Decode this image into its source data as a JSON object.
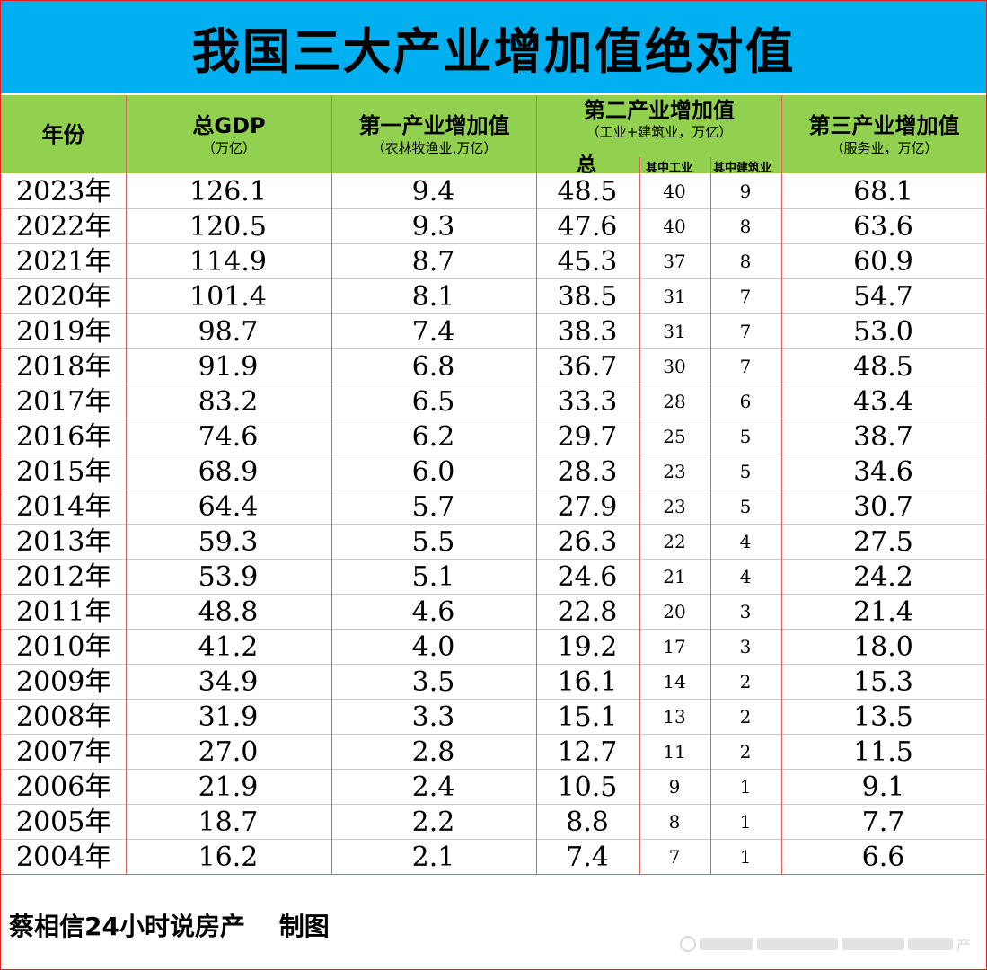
{
  "title": "我国三大产业增加值绝对值",
  "header": {
    "year": "年份",
    "gdp": {
      "main": "总GDP",
      "sub": "（万亿）"
    },
    "primary": {
      "main": "第一产业增加值",
      "sub": "（农林牧渔业,万亿）"
    },
    "secondary": {
      "main": "第二产业增加值",
      "sub": "（工业+建筑业，万亿）",
      "total": "总",
      "industry": "其中工业",
      "construction": "其中建筑业"
    },
    "tertiary": {
      "main": "第三产业增加值",
      "sub": "（服务业，万亿）"
    }
  },
  "chart_data": {
    "type": "table",
    "title": "我国三大产业增加值绝对值",
    "columns": [
      "年份",
      "总GDP（万亿）",
      "第一产业增加值（农林牧渔业,万亿）",
      "第二产业增加值 总",
      "其中工业",
      "其中建筑业",
      "第三产业增加值（服务业，万亿）"
    ],
    "rows": [
      [
        "2023年",
        "126.1",
        "9.4",
        "48.5",
        "40",
        "9",
        "68.1"
      ],
      [
        "2022年",
        "120.5",
        "9.3",
        "47.6",
        "40",
        "8",
        "63.6"
      ],
      [
        "2021年",
        "114.9",
        "8.7",
        "45.3",
        "37",
        "8",
        "60.9"
      ],
      [
        "2020年",
        "101.4",
        "8.1",
        "38.5",
        "31",
        "7",
        "54.7"
      ],
      [
        "2019年",
        "98.7",
        "7.4",
        "38.3",
        "31",
        "7",
        "53.0"
      ],
      [
        "2018年",
        "91.9",
        "6.8",
        "36.7",
        "30",
        "7",
        "48.5"
      ],
      [
        "2017年",
        "83.2",
        "6.5",
        "33.3",
        "28",
        "6",
        "43.4"
      ],
      [
        "2016年",
        "74.6",
        "6.2",
        "29.7",
        "25",
        "5",
        "38.7"
      ],
      [
        "2015年",
        "68.9",
        "6.0",
        "28.3",
        "23",
        "5",
        "34.6"
      ],
      [
        "2014年",
        "64.4",
        "5.7",
        "27.9",
        "23",
        "5",
        "30.7"
      ],
      [
        "2013年",
        "59.3",
        "5.5",
        "26.3",
        "22",
        "4",
        "27.5"
      ],
      [
        "2012年",
        "53.9",
        "5.1",
        "24.6",
        "21",
        "4",
        "24.2"
      ],
      [
        "2011年",
        "48.8",
        "4.6",
        "22.8",
        "20",
        "3",
        "21.4"
      ],
      [
        "2010年",
        "41.2",
        "4.0",
        "19.2",
        "17",
        "3",
        "18.0"
      ],
      [
        "2009年",
        "34.9",
        "3.5",
        "16.1",
        "14",
        "2",
        "15.3"
      ],
      [
        "2008年",
        "31.9",
        "3.3",
        "15.1",
        "13",
        "2",
        "13.5"
      ],
      [
        "2007年",
        "27.0",
        "2.8",
        "12.7",
        "11",
        "2",
        "11.5"
      ],
      [
        "2006年",
        "21.9",
        "2.4",
        "10.5",
        "9",
        "1",
        "9.1"
      ],
      [
        "2005年",
        "18.7",
        "2.2",
        "8.8",
        "8",
        "1",
        "7.7"
      ],
      [
        "2004年",
        "16.2",
        "2.1",
        "7.4",
        "7",
        "1",
        "6.6"
      ]
    ]
  },
  "footer": "蔡相信24小时说房产　 制图",
  "watermark": "产",
  "colors": {
    "title_bg": "#00b0f0",
    "header_bg": "#92d050",
    "border": "#e02020"
  }
}
